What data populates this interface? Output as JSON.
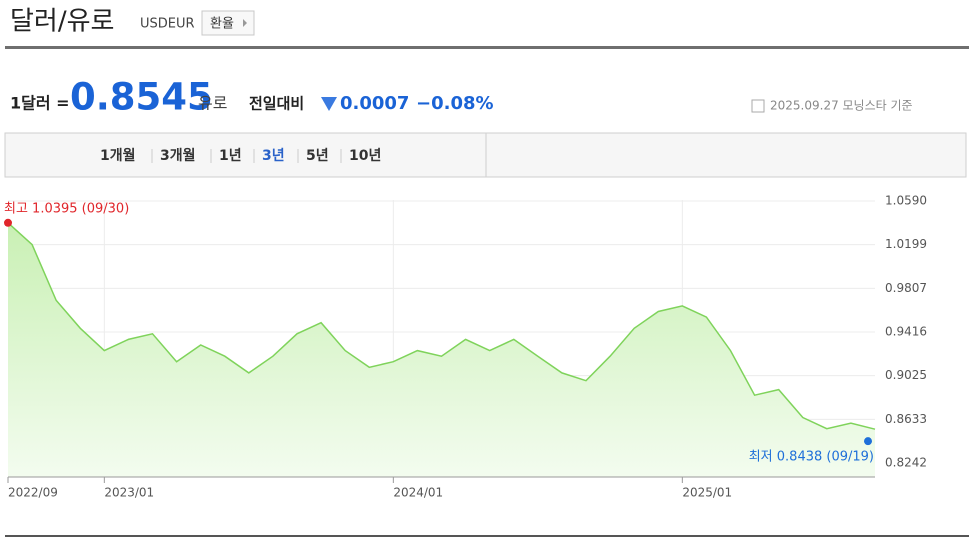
{
  "header": {
    "title": "달러/유로",
    "code": "USDEUR",
    "button": "환율"
  },
  "quote": {
    "prefix": "1달러 =",
    "price": "0.8545",
    "unit": "유로",
    "change_label": "전일대비",
    "change": "0.0007",
    "change_pct": "−0.08%",
    "source": "2025.09.27 모닝스타 기준"
  },
  "tabs": {
    "items": [
      "1개월",
      "3개월",
      "1년",
      "3년",
      "5년",
      "10년"
    ],
    "selected": 3
  },
  "chart_data": {
    "type": "area",
    "color": "#7fd35b",
    "categories": [
      "2022/09",
      null,
      null,
      null,
      "2023/01",
      null,
      null,
      null,
      null,
      null,
      null,
      null,
      null,
      null,
      null,
      null,
      "2024/01",
      null,
      null,
      null,
      null,
      null,
      null,
      null,
      null,
      null,
      null,
      null,
      "2025/01",
      null,
      null,
      null,
      null,
      null,
      null,
      null,
      null
    ],
    "values": [
      1.0395,
      1.02,
      0.97,
      0.945,
      0.925,
      0.935,
      0.94,
      0.915,
      0.93,
      0.92,
      0.905,
      0.92,
      0.94,
      0.95,
      0.925,
      0.91,
      0.915,
      0.925,
      0.92,
      0.935,
      0.925,
      0.935,
      0.92,
      0.905,
      0.898,
      0.92,
      0.945,
      0.96,
      0.965,
      0.955,
      0.925,
      0.885,
      0.89,
      0.865,
      0.855,
      0.86,
      0.8545
    ],
    "ylim": [
      0.8117,
      1.0689
    ],
    "yticks": [
      {
        "value": 1.059,
        "label": "1.0590"
      },
      1.0199,
      0.9807,
      0.9416,
      0.9025,
      0.8633,
      0.8242
    ],
    "grid": true,
    "max": {
      "label": "최고 1.0395 (09/30)",
      "value": 1.0395,
      "color": "#e0262b"
    },
    "min": {
      "label": "최저 0.8438 (09/19)",
      "value": 0.8438,
      "color": "#1e6fd9"
    }
  }
}
